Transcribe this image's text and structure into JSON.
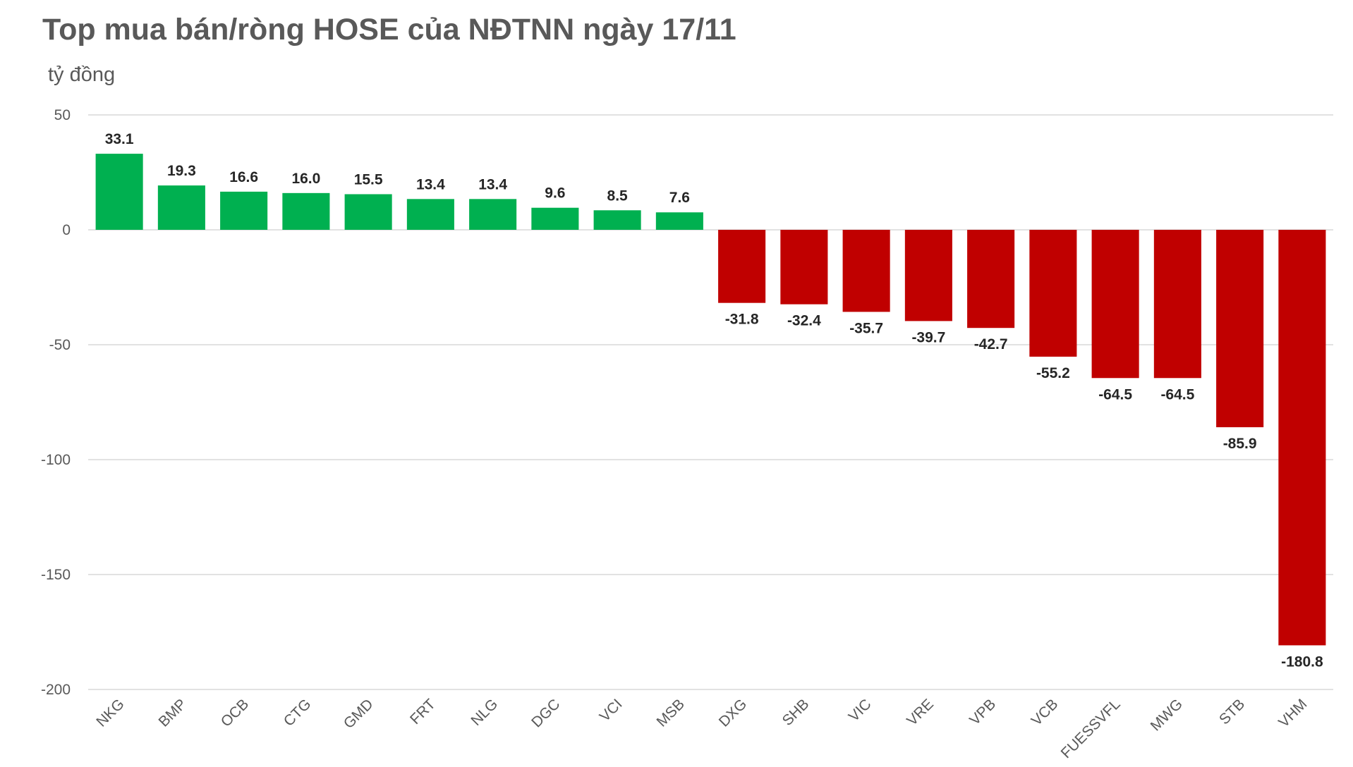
{
  "colors": {
    "positive": "#00b050",
    "negative": "#c00000",
    "grid": "#d9d9d9",
    "text": "#595959"
  },
  "chart_data": {
    "type": "bar",
    "title": "Top mua bán/ròng HOSE của NĐTNN ngày 17/11",
    "ylabel": "tỷ đồng",
    "xlabel": "",
    "ylim": [
      -200,
      50
    ],
    "yticks": [
      50,
      0,
      -50,
      -100,
      -150,
      -200
    ],
    "grid": true,
    "categories": [
      "NKG",
      "BMP",
      "OCB",
      "CTG",
      "GMD",
      "FRT",
      "NLG",
      "DGC",
      "VCI",
      "MSB",
      "DXG",
      "SHB",
      "VIC",
      "VRE",
      "VPB",
      "VCB",
      "FUESSVFL",
      "MWG",
      "STB",
      "VHM"
    ],
    "values": [
      33.1,
      19.3,
      16.6,
      16.0,
      15.5,
      13.4,
      13.4,
      9.6,
      8.5,
      7.6,
      -31.8,
      -32.4,
      -35.7,
      -39.7,
      -42.7,
      -55.2,
      -64.5,
      -64.5,
      -85.9,
      -180.8
    ],
    "data_labels": [
      "33.1",
      "19.3",
      "16.6",
      "16.0",
      "15.5",
      "13.4",
      "13.4",
      "9.6",
      "8.5",
      "7.6",
      "-31.8",
      "-32.4",
      "-35.7",
      "-39.7",
      "-42.7",
      "-55.2",
      "-64.5",
      "-64.5",
      "-85.9",
      "-180.8"
    ]
  }
}
